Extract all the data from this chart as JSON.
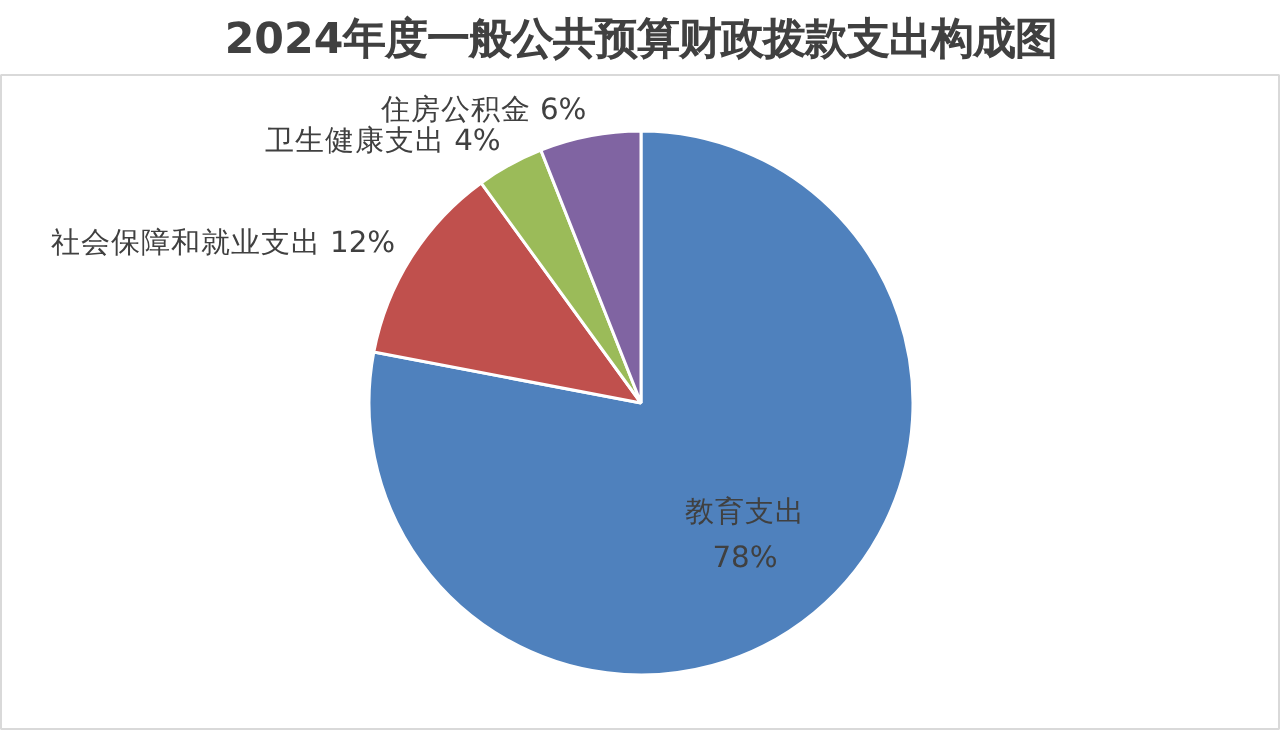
{
  "chart_data": {
    "type": "pie",
    "title": "2024年度一般公共预算财政拨款支出构成图",
    "categories": [
      "教育支出",
      "社会保障和就业支出",
      "卫生健康支出",
      "住房公积金"
    ],
    "values": [
      78,
      12,
      4,
      6
    ],
    "value_labels": [
      "78%",
      "12%",
      "4%",
      "6%"
    ],
    "colors": [
      "#4f81bd",
      "#c0504d",
      "#9bbb59",
      "#8064a2"
    ],
    "legend": false
  }
}
